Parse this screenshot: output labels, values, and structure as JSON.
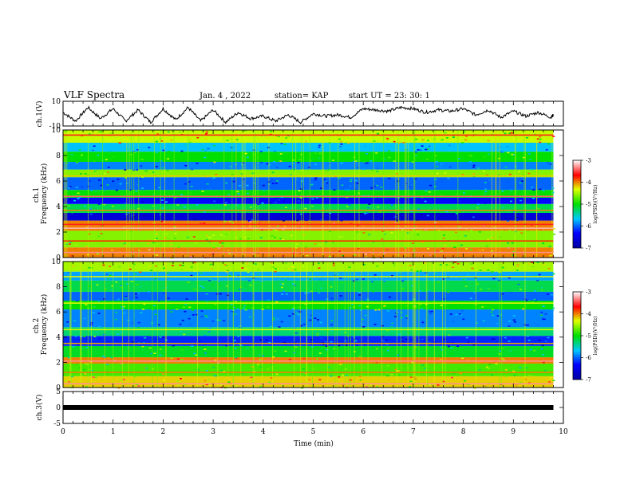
{
  "header": {
    "title": "VLF Spectra",
    "date": "Jan. 4 , 2022",
    "station": "station= KAP",
    "start": "start UT =   23: 30: 1"
  },
  "chart_data": [
    {
      "type": "line",
      "ylabel": "ch.1(V)",
      "xlim": [
        0,
        10
      ],
      "ylim": [
        -10,
        10
      ],
      "yticks": [
        "10",
        "-10"
      ],
      "series": [
        {
          "x": [
            0,
            0.25,
            0.5,
            0.75,
            1,
            1.25,
            1.5,
            1.75,
            2,
            2.25,
            2.5,
            2.75,
            3,
            3.25,
            3.5,
            3.75,
            4,
            4.25,
            4.5,
            4.75,
            5,
            5.25,
            5.5,
            5.75,
            6,
            6.25,
            6.5,
            6.75,
            7,
            7.25,
            7.5,
            7.75,
            8,
            8.25,
            8.5,
            8.75,
            9,
            9.25,
            9.5,
            9.75,
            9.8
          ],
          "y": [
            1,
            -6,
            5,
            -4,
            4,
            -6,
            3,
            -7,
            4,
            -5,
            5,
            -6,
            3,
            -7,
            1,
            -4,
            -2,
            -6,
            -1,
            -7,
            0,
            -2,
            -1,
            -3,
            4,
            3,
            2,
            5,
            4,
            1,
            3,
            2,
            4,
            -1,
            3,
            -3,
            2,
            -2,
            1,
            -3,
            -1
          ]
        }
      ]
    },
    {
      "type": "heatmap",
      "ylabel": "ch.1\nFrequency (kHz)",
      "xlim": [
        0,
        9.8
      ],
      "ylim": [
        0,
        10
      ],
      "yticks": [
        "0",
        "2",
        "4",
        "6",
        "8",
        "10"
      ],
      "colorbar": {
        "label": "log(PSD)(V²/Hz)",
        "range": [
          -7,
          -3
        ],
        "ticks": [
          "-3",
          "-4",
          "-5",
          "-6",
          "-7"
        ]
      },
      "bands": [
        {
          "f": [
            0.0,
            0.8
          ],
          "level": -4.0
        },
        {
          "f": [
            0.8,
            2.1
          ],
          "level": -4.6
        },
        {
          "f": [
            2.1,
            2.9
          ],
          "level": -4.0
        },
        {
          "f": [
            2.9,
            3.5
          ],
          "level": -6.6
        },
        {
          "f": [
            3.5,
            4.2
          ],
          "level": -5.2
        },
        {
          "f": [
            4.2,
            4.7
          ],
          "level": -6.3
        },
        {
          "f": [
            4.7,
            5.3
          ],
          "level": -5.0
        },
        {
          "f": [
            5.3,
            6.3
          ],
          "level": -6.0
        },
        {
          "f": [
            6.3,
            6.9
          ],
          "level": -4.6
        },
        {
          "f": [
            6.9,
            7.5
          ],
          "level": -5.9
        },
        {
          "f": [
            7.5,
            8.3
          ],
          "level": -5.0
        },
        {
          "f": [
            8.3,
            9.0
          ],
          "level": -5.7
        },
        {
          "f": [
            9.0,
            10.0
          ],
          "level": -4.4
        }
      ],
      "lines": [
        {
          "f": 0.4,
          "level": -3.3
        },
        {
          "f": 1.3,
          "level": -3.8
        },
        {
          "f": 2.3,
          "level": -3.2
        },
        {
          "f": 2.6,
          "level": -3.6
        },
        {
          "f": 3.7,
          "level": -4.0
        },
        {
          "f": 4.8,
          "level": -3.4
        },
        {
          "f": 6.4,
          "level": -4.2
        },
        {
          "f": 9.6,
          "level": -3.6
        }
      ]
    },
    {
      "type": "heatmap",
      "ylabel": "ch.2\nFrequency (kHz)",
      "xlim": [
        0,
        9.8
      ],
      "ylim": [
        0,
        10
      ],
      "yticks": [
        "0",
        "2",
        "4",
        "6",
        "8",
        "10"
      ],
      "colorbar": {
        "label": "log(PSD)(V²/Hz)",
        "range": [
          -7,
          -3
        ],
        "ticks": [
          "-3",
          "-4",
          "-5",
          "-6",
          "-7"
        ]
      },
      "bands": [
        {
          "f": [
            0.0,
            0.9
          ],
          "level": -4.2
        },
        {
          "f": [
            0.9,
            1.9
          ],
          "level": -4.8
        },
        {
          "f": [
            1.9,
            2.4
          ],
          "level": -4.0
        },
        {
          "f": [
            2.4,
            3.3
          ],
          "level": -5.1
        },
        {
          "f": [
            3.3,
            4.1
          ],
          "level": -6.2
        },
        {
          "f": [
            4.1,
            4.8
          ],
          "level": -5.3
        },
        {
          "f": [
            4.8,
            6.2
          ],
          "level": -5.9
        },
        {
          "f": [
            6.2,
            6.9
          ],
          "level": -5.0
        },
        {
          "f": [
            6.9,
            7.6
          ],
          "level": -6.0
        },
        {
          "f": [
            7.6,
            8.5
          ],
          "level": -5.2
        },
        {
          "f": [
            8.5,
            9.2
          ],
          "level": -5.8
        },
        {
          "f": [
            9.2,
            10.0
          ],
          "level": -4.5
        }
      ],
      "lines": [
        {
          "f": 0.3,
          "level": -3.3
        },
        {
          "f": 1.2,
          "level": -4.0
        },
        {
          "f": 2.1,
          "level": -3.3
        },
        {
          "f": 3.5,
          "level": -4.1
        },
        {
          "f": 4.6,
          "level": -4.3
        },
        {
          "f": 6.7,
          "level": -4.3
        },
        {
          "f": 8.8,
          "level": -4.3
        }
      ]
    },
    {
      "type": "line",
      "ylabel": "ch.3(V)",
      "xlabel": "Time (min)",
      "xlim": [
        0,
        10
      ],
      "ylim": [
        -5,
        5
      ],
      "yticks": [
        "5",
        "0",
        "-5"
      ],
      "xticks": [
        "0",
        "1",
        "2",
        "3",
        "4",
        "5",
        "6",
        "7",
        "8",
        "9",
        "10"
      ],
      "series": [
        {
          "x": [
            0,
            9.8
          ],
          "y": [
            0,
            0
          ]
        }
      ]
    }
  ]
}
